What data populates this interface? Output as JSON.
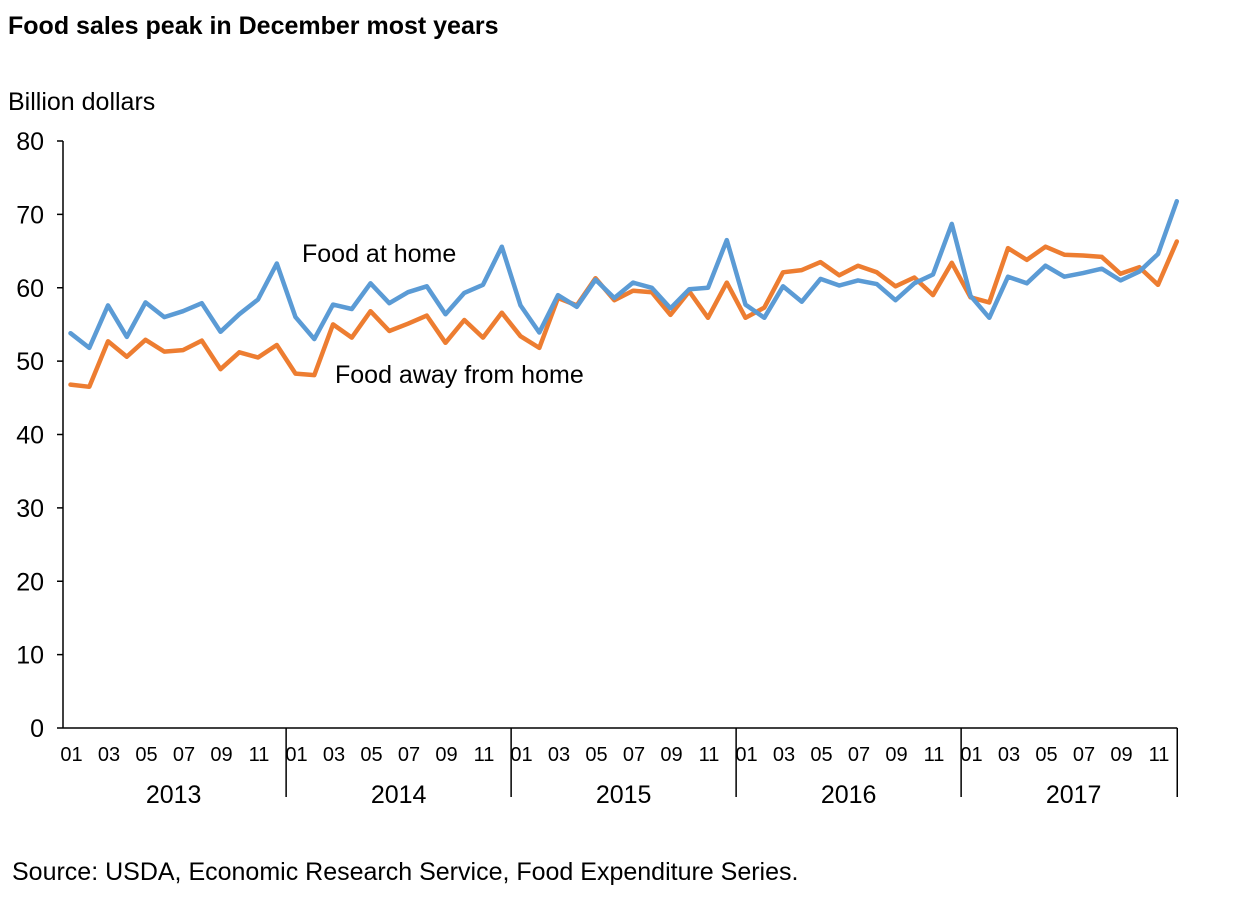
{
  "title": "Food sales peak in December most years",
  "source": "Source: USDA, Economic Research Service, Food Expenditure Series.",
  "chart_data": {
    "type": "line",
    "title": "Food sales peak in December most years",
    "ylabel": "Billion dollars",
    "xlabel": "",
    "ylim": [
      0,
      80
    ],
    "yticks": [
      0,
      10,
      20,
      30,
      40,
      50,
      60,
      70,
      80
    ],
    "grid": false,
    "month_tick_labels": [
      "01",
      "03",
      "05",
      "07",
      "09",
      "11"
    ],
    "years": [
      "2013",
      "2014",
      "2015",
      "2016",
      "2017"
    ],
    "series": [
      {
        "name": "Food at home",
        "color": "#5b9bd5",
        "values": [
          53.8,
          51.8,
          57.6,
          53.3,
          58.0,
          56.0,
          56.8,
          57.9,
          54.0,
          56.4,
          58.4,
          63.3,
          56.0,
          53.0,
          57.7,
          57.1,
          60.6,
          57.9,
          59.4,
          60.2,
          56.4,
          59.3,
          60.4,
          65.6,
          57.6,
          53.9,
          59.0,
          57.4,
          61.1,
          58.6,
          60.7,
          60.0,
          57.2,
          59.8,
          60.0,
          66.5,
          57.7,
          55.9,
          60.2,
          58.1,
          61.2,
          60.3,
          61.0,
          60.5,
          58.3,
          60.6,
          61.8,
          68.7,
          58.9,
          55.9,
          61.5,
          60.6,
          63.0,
          61.5,
          62.0,
          62.6,
          61.0,
          62.2,
          64.6,
          71.8
        ]
      },
      {
        "name": "Food away from home",
        "color": "#ed7d31",
        "values": [
          46.8,
          46.5,
          52.7,
          50.6,
          52.9,
          51.3,
          51.5,
          52.8,
          48.9,
          51.2,
          50.5,
          52.2,
          48.3,
          48.1,
          55.0,
          53.2,
          56.8,
          54.1,
          55.1,
          56.2,
          52.5,
          55.6,
          53.2,
          56.6,
          53.4,
          51.8,
          58.6,
          57.6,
          61.3,
          58.3,
          59.6,
          59.4,
          56.3,
          59.5,
          55.9,
          60.7,
          55.9,
          57.3,
          62.1,
          62.4,
          63.5,
          61.7,
          63.0,
          62.1,
          60.2,
          61.4,
          59.0,
          63.4,
          58.7,
          58.0,
          65.4,
          63.8,
          65.6,
          64.5,
          64.4,
          64.2,
          61.9,
          62.8,
          60.4,
          66.3
        ]
      }
    ]
  }
}
